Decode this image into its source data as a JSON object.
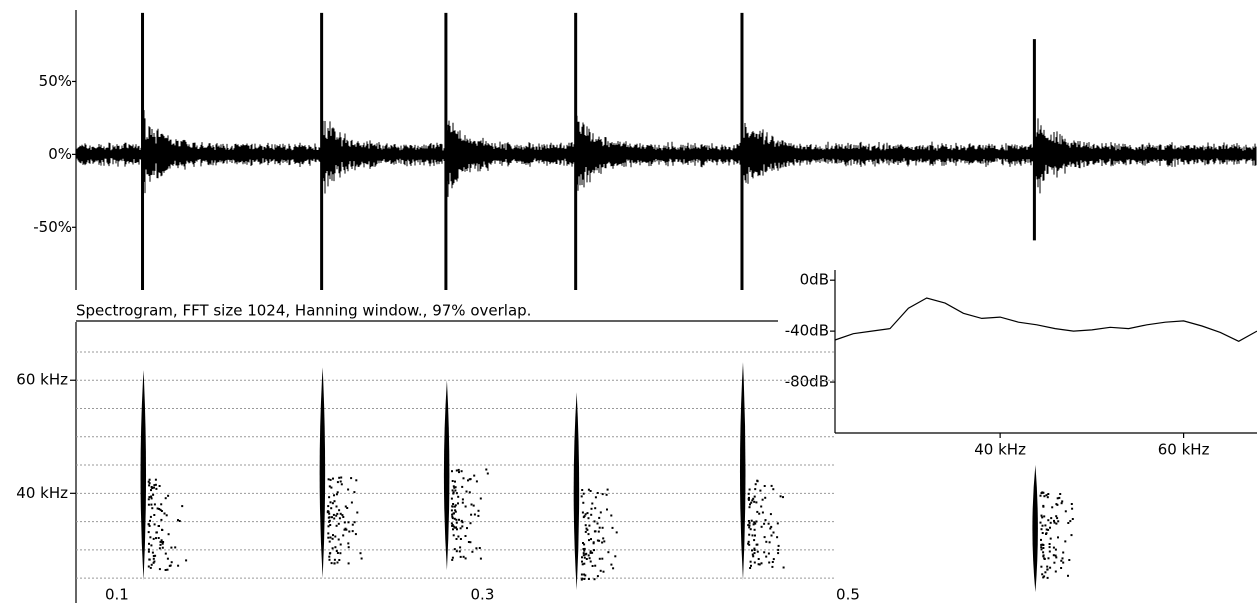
{
  "waveform": {
    "ylim": [
      -93,
      99
    ],
    "xlim": [
      0.0776,
      0.7238
    ],
    "yticks": [
      {
        "value": 50,
        "label": "50%"
      },
      {
        "value": 0,
        "label": "0%"
      },
      {
        "value": -50,
        "label": "-50%"
      }
    ]
  },
  "pulses": [
    {
      "time": 0.114,
      "peak": 97,
      "trough": -93,
      "f_high": 61.8,
      "f_low": 24.6
    },
    {
      "time": 0.212,
      "peak": 97,
      "trough": -93,
      "f_high": 62.3,
      "f_low": 25
    },
    {
      "time": 0.28,
      "peak": 97,
      "trough": -93,
      "f_high": 60,
      "f_low": 26.4
    },
    {
      "time": 0.351,
      "peak": 97,
      "trough": -93,
      "f_high": 57.9,
      "f_low": 22.9
    },
    {
      "time": 0.442,
      "peak": 97,
      "trough": -93,
      "f_high": 63.2,
      "f_low": 24.6
    },
    {
      "time": 0.602,
      "peak": 79,
      "trough": -59,
      "f_high": 45,
      "f_low": 22.5
    }
  ],
  "spectrogram": {
    "title": "Spectrogram, FFT size 1024, Hanning window., 97% overlap.",
    "ylim": [
      20.6,
      70.3
    ],
    "yticks": [
      {
        "value": 60,
        "label": "60 kHz"
      },
      {
        "value": 40,
        "label": "40 kHz"
      }
    ],
    "gridlines": [
      65,
      55,
      50,
      45,
      35,
      30,
      25
    ],
    "xticks": [
      0.1,
      0.3,
      0.5
    ]
  },
  "spectrum": {
    "xlim": [
      22,
      68
    ],
    "ylim": [
      -120,
      8
    ],
    "yticks": [
      {
        "value": 0,
        "label": "0dB"
      },
      {
        "value": -40,
        "label": "-40dB"
      },
      {
        "value": -80,
        "label": "-80dB"
      }
    ],
    "xticks": [
      {
        "value": 40,
        "label": "40 kHz"
      },
      {
        "value": 60,
        "label": "60 kHz"
      }
    ],
    "x": [
      22,
      24,
      26,
      28,
      30,
      32,
      34,
      36,
      38,
      40,
      42,
      44,
      46,
      48,
      50,
      52,
      54,
      56,
      58,
      60,
      62,
      64,
      66,
      68
    ],
    "values": [
      -47,
      -42,
      -40,
      -38,
      -22,
      -14,
      -18,
      -26,
      -30,
      -29,
      -33,
      -35,
      -38,
      -40,
      -39,
      -37,
      -38,
      -35,
      -33,
      -32,
      -36,
      -41,
      -48,
      -40
    ]
  }
}
